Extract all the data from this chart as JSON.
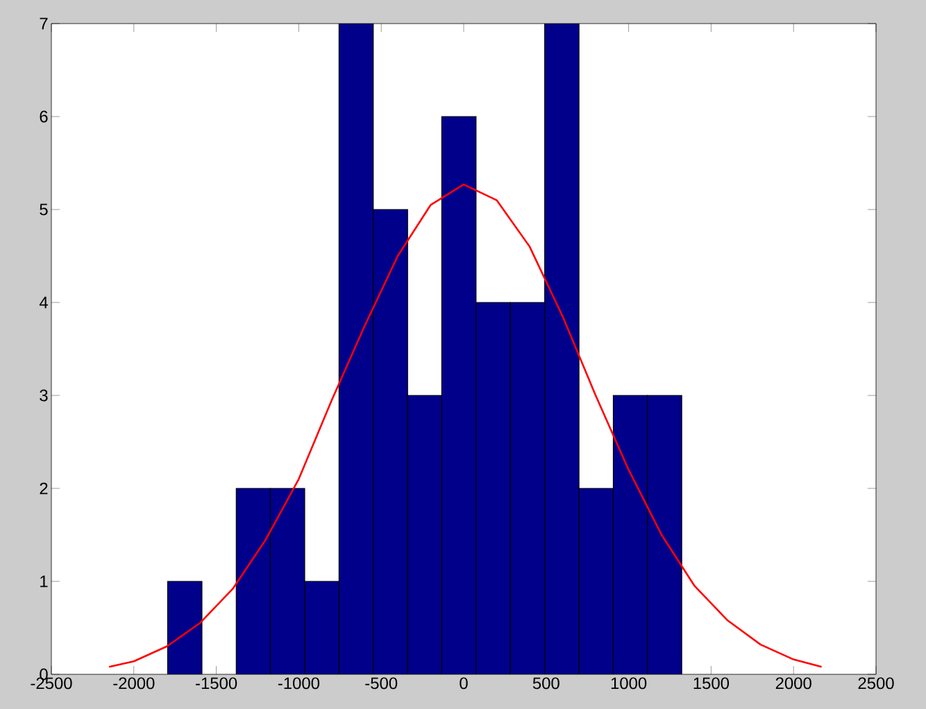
{
  "chart_data": {
    "type": "histogram",
    "xlim": [
      -2500,
      2500
    ],
    "xticks": [
      -2500,
      -2000,
      -1500,
      -1000,
      -500,
      0,
      500,
      1000,
      1500,
      2000,
      2500
    ],
    "ylim": [
      0,
      7
    ],
    "yticks": [
      0,
      1,
      2,
      3,
      4,
      5,
      6,
      7
    ],
    "grid": false,
    "series": [
      {
        "color": "#00008b",
        "bins": [
          -1795,
          -1587,
          -1379,
          -1172,
          -964,
          -756,
          -548,
          -340,
          -133,
          75,
          283,
          491,
          699,
          907,
          1114,
          1322
        ],
        "values": [
          1,
          0,
          2,
          2,
          1,
          7,
          5,
          3,
          6,
          4,
          4,
          7,
          2,
          3,
          3
        ]
      },
      {
        "type": "line",
        "color": "#ff0000",
        "x": [
          -2150,
          -2000,
          -1800,
          -1600,
          -1400,
          -1200,
          -1000,
          -800,
          -600,
          -400,
          -200,
          0,
          200,
          400,
          600,
          800,
          1000,
          1200,
          1400,
          1600,
          1800,
          2000,
          2170
        ],
        "values": [
          0.08,
          0.14,
          0.3,
          0.55,
          0.92,
          1.45,
          2.1,
          2.95,
          3.75,
          4.5,
          5.05,
          5.27,
          5.1,
          4.6,
          3.85,
          3.0,
          2.2,
          1.5,
          0.95,
          0.58,
          0.32,
          0.16,
          0.08
        ]
      }
    ]
  }
}
